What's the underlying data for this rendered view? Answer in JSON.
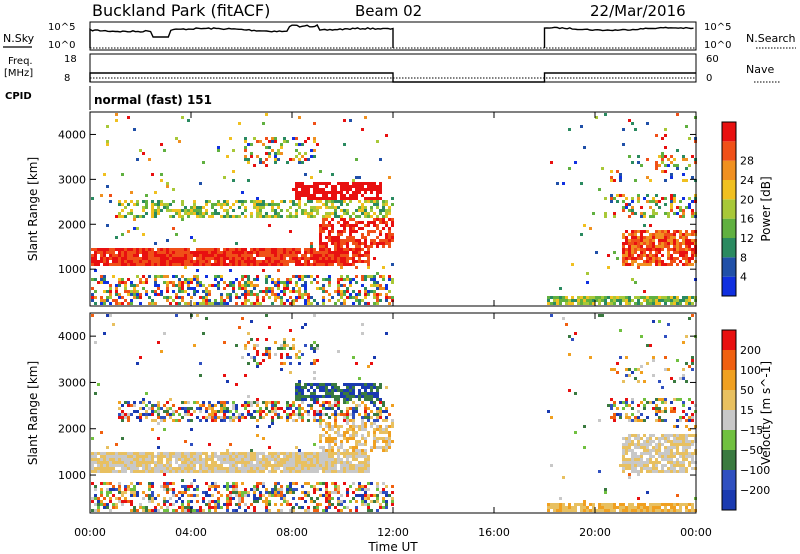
{
  "header": {
    "title": "Buckland Park (fitACF)",
    "beam": "Beam 02",
    "date": "22/Mar/2016"
  },
  "panels": {
    "nsky": {
      "label": "N.Sky",
      "ticks": [
        "10^5",
        "10^0"
      ],
      "right_label": "N.Search",
      "right_ticks": [
        "10^5",
        "10^0"
      ]
    },
    "freq": {
      "label": "Freq.",
      "unit": "[MHz]",
      "ticks": [
        "18",
        "8"
      ],
      "right_label": "Nave",
      "right_ticks": [
        "60",
        "0"
      ]
    },
    "cpid": {
      "label": "CPID",
      "text": "normal (fast) 151"
    }
  },
  "colors": {
    "power_scale": [
      "#1030e0",
      "#2050a8",
      "#2a8a60",
      "#60b040",
      "#a8c838",
      "#f0c020",
      "#f09020",
      "#f05018",
      "#e81010"
    ],
    "velocity_scale": [
      "#1a3ab0",
      "#3050c0",
      "#3a7a40",
      "#70c040",
      "#c8c8c8",
      "#e8c060",
      "#f0a020",
      "#f06010",
      "#e81010"
    ]
  },
  "chart_data": [
    {
      "type": "heatmap",
      "name": "power",
      "ylabel": "Slant Range [km]",
      "yticks": [
        "1000",
        "2000",
        "3000",
        "4000"
      ],
      "ylim": [
        180,
        4500
      ],
      "xlim": [
        "00:00",
        "24:00"
      ],
      "colorbar": {
        "label": "Power [dB]",
        "ticks": [
          "4",
          "8",
          "12",
          "16",
          "20",
          "24",
          "28"
        ],
        "range": [
          0,
          30
        ]
      },
      "data_gap": [
        "12:00",
        "18:00"
      ]
    },
    {
      "type": "heatmap",
      "name": "velocity",
      "ylabel": "Slant Range [km]",
      "yticks": [
        "1000",
        "2000",
        "3000",
        "4000"
      ],
      "ylim": [
        180,
        4500
      ],
      "xlim": [
        "00:00",
        "24:00"
      ],
      "colorbar": {
        "label": "Velocity [m s^-1]",
        "ticks": [
          "200",
          "100",
          "50",
          "15",
          "-15",
          "-50",
          "-100",
          "-200"
        ]
      },
      "data_gap": [
        "12:00",
        "18:00"
      ]
    }
  ],
  "xaxis": {
    "label": "Time UT",
    "ticks": [
      "00:00",
      "04:00",
      "08:00",
      "12:00",
      "16:00",
      "20:00",
      "00:00"
    ]
  }
}
